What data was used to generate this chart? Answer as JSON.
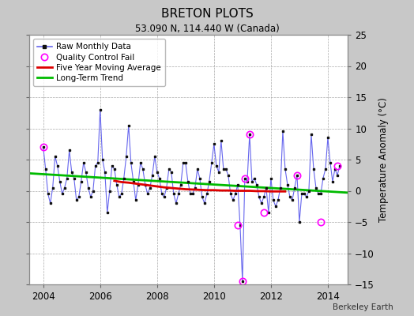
{
  "title": "BRETON PLOTS",
  "subtitle": "53.090 N, 114.440 W (Canada)",
  "footer": "Berkeley Earth",
  "ylabel": "Temperature Anomaly (°C)",
  "xlim": [
    2003.5,
    2014.7
  ],
  "ylim": [
    -15,
    25
  ],
  "yticks": [
    -15,
    -10,
    -5,
    0,
    5,
    10,
    15,
    20,
    25
  ],
  "xticks": [
    2004,
    2006,
    2008,
    2010,
    2012,
    2014
  ],
  "bg_color": "#c8c8c8",
  "plot_bg": "#ffffff",
  "raw_color": "#6666ee",
  "marker_color": "#111111",
  "qc_color": "#ff00ff",
  "ma_color": "#dd0000",
  "trend_color": "#00bb00",
  "raw_x": [
    2004.0,
    2004.083,
    2004.167,
    2004.25,
    2004.333,
    2004.417,
    2004.5,
    2004.583,
    2004.667,
    2004.75,
    2004.833,
    2004.917,
    2005.0,
    2005.083,
    2005.167,
    2005.25,
    2005.333,
    2005.417,
    2005.5,
    2005.583,
    2005.667,
    2005.75,
    2005.833,
    2005.917,
    2006.0,
    2006.083,
    2006.167,
    2006.25,
    2006.333,
    2006.417,
    2006.5,
    2006.583,
    2006.667,
    2006.75,
    2006.833,
    2006.917,
    2007.0,
    2007.083,
    2007.167,
    2007.25,
    2007.333,
    2007.417,
    2007.5,
    2007.583,
    2007.667,
    2007.75,
    2007.833,
    2007.917,
    2008.0,
    2008.083,
    2008.167,
    2008.25,
    2008.333,
    2008.417,
    2008.5,
    2008.583,
    2008.667,
    2008.75,
    2008.833,
    2008.917,
    2009.0,
    2009.083,
    2009.167,
    2009.25,
    2009.333,
    2009.417,
    2009.5,
    2009.583,
    2009.667,
    2009.75,
    2009.833,
    2009.917,
    2010.0,
    2010.083,
    2010.167,
    2010.25,
    2010.333,
    2010.417,
    2010.5,
    2010.583,
    2010.667,
    2010.75,
    2010.833,
    2010.917,
    2011.0,
    2011.083,
    2011.167,
    2011.25,
    2011.333,
    2011.417,
    2011.5,
    2011.583,
    2011.667,
    2011.75,
    2011.833,
    2011.917,
    2012.0,
    2012.083,
    2012.167,
    2012.25,
    2012.333,
    2012.417,
    2012.5,
    2012.583,
    2012.667,
    2012.75,
    2012.833,
    2012.917,
    2013.0,
    2013.083,
    2013.167,
    2013.25,
    2013.333,
    2013.417,
    2013.5,
    2013.583,
    2013.667,
    2013.75,
    2013.833,
    2013.917,
    2014.0,
    2014.083,
    2014.167,
    2014.25,
    2014.333,
    2014.417
  ],
  "raw_y": [
    7.0,
    3.5,
    -0.5,
    -2.0,
    0.5,
    5.5,
    4.0,
    1.5,
    -0.5,
    0.5,
    2.0,
    6.5,
    3.0,
    2.0,
    -1.5,
    -1.0,
    1.5,
    4.5,
    3.0,
    0.5,
    -1.0,
    0.0,
    4.0,
    4.5,
    13.0,
    5.0,
    3.0,
    -3.5,
    0.0,
    4.0,
    3.5,
    1.0,
    -1.0,
    -0.5,
    2.0,
    5.5,
    10.5,
    4.5,
    1.5,
    -1.5,
    1.0,
    4.5,
    3.5,
    1.0,
    -0.5,
    0.5,
    2.5,
    5.5,
    3.0,
    2.0,
    -0.5,
    -1.0,
    0.5,
    3.5,
    3.0,
    -0.5,
    -2.0,
    -0.5,
    1.0,
    4.5,
    4.5,
    1.5,
    -0.5,
    -0.5,
    0.5,
    3.5,
    2.0,
    -1.0,
    -2.0,
    -0.5,
    1.5,
    4.5,
    7.5,
    4.0,
    3.0,
    8.0,
    3.5,
    3.5,
    2.5,
    -0.5,
    -1.5,
    -0.5,
    1.0,
    -5.5,
    -14.5,
    2.0,
    1.5,
    9.0,
    1.5,
    2.0,
    1.0,
    -1.0,
    -2.0,
    -1.0,
    0.5,
    -3.5,
    2.0,
    -1.5,
    -2.5,
    -1.5,
    0.5,
    9.5,
    3.5,
    1.0,
    -1.0,
    -1.5,
    0.5,
    2.5,
    -5.0,
    -0.5,
    -0.5,
    -1.0,
    0.0,
    9.0,
    3.5,
    0.5,
    -0.5,
    -0.5,
    2.0,
    3.5,
    8.5,
    4.5,
    1.5,
    3.5,
    2.5,
    4.0
  ],
  "qc_x": [
    2004.0,
    2010.833,
    2011.0,
    2011.083,
    2011.25,
    2011.75,
    2012.917,
    2013.75,
    2014.333
  ],
  "qc_y": [
    7.0,
    -5.5,
    -14.5,
    2.0,
    9.0,
    -3.5,
    2.5,
    -5.0,
    4.0
  ],
  "ma_x": [
    2006.5,
    2006.75,
    2007.0,
    2007.25,
    2007.5,
    2007.75,
    2008.0,
    2008.25,
    2008.5,
    2008.75,
    2009.0,
    2009.25,
    2009.5,
    2009.75,
    2010.0,
    2010.25,
    2010.5,
    2010.75,
    2011.0,
    2011.25,
    2011.5,
    2011.75,
    2012.0,
    2012.25,
    2012.5
  ],
  "ma_y": [
    1.6,
    1.4,
    1.3,
    1.15,
    1.0,
    0.85,
    0.7,
    0.55,
    0.45,
    0.35,
    0.25,
    0.2,
    0.15,
    0.1,
    0.1,
    0.05,
    0.05,
    0.0,
    0.0,
    0.0,
    -0.05,
    -0.05,
    -0.1,
    -0.1,
    -0.1
  ],
  "trend_x": [
    2003.5,
    2014.7
  ],
  "trend_y": [
    2.8,
    -0.3
  ]
}
